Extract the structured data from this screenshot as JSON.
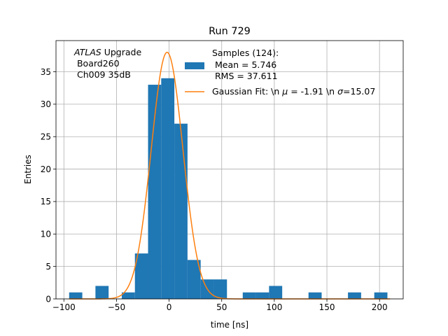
{
  "chart_data": {
    "type": "bar",
    "title": "Run 729",
    "xlabel": "time [ns]",
    "ylabel": "Entries",
    "xlim": [
      -107.5,
      222.5
    ],
    "ylim": [
      0,
      39.8
    ],
    "xticks": [
      -100,
      -50,
      0,
      50,
      100,
      150,
      200
    ],
    "yticks": [
      0,
      5,
      10,
      15,
      20,
      25,
      30,
      35
    ],
    "grid": true,
    "annotation": {
      "atlas": "ATLAS",
      "line1_rest": " Upgrade",
      "line2": " Board260",
      "line3": " Ch009 35dB"
    },
    "histogram": {
      "name": "Samples (124):",
      "mean_label": " Mean = 5.746",
      "rms_label": " RMS = 37.611",
      "color": "#1f77b4",
      "bins": [
        {
          "x0": -95.0,
          "x1": -82.5,
          "count": 1
        },
        {
          "x0": -70.0,
          "x1": -57.5,
          "count": 2
        },
        {
          "x0": -45.0,
          "x1": -32.5,
          "count": 1
        },
        {
          "x0": -32.5,
          "x1": -20.0,
          "count": 7
        },
        {
          "x0": -20.0,
          "x1": -7.5,
          "count": 33
        },
        {
          "x0": -7.5,
          "x1": 5.0,
          "count": 34
        },
        {
          "x0": 5.0,
          "x1": 17.5,
          "count": 27
        },
        {
          "x0": 17.5,
          "x1": 30.0,
          "count": 6
        },
        {
          "x0": 30.0,
          "x1": 42.5,
          "count": 3
        },
        {
          "x0": 42.5,
          "x1": 55.0,
          "count": 3
        },
        {
          "x0": 70.0,
          "x1": 82.5,
          "count": 1
        },
        {
          "x0": 82.5,
          "x1": 95.0,
          "count": 1
        },
        {
          "x0": 95.0,
          "x1": 107.5,
          "count": 2
        },
        {
          "x0": 132.5,
          "x1": 145.0,
          "count": 1
        },
        {
          "x0": 170.0,
          "x1": 182.5,
          "count": 1
        },
        {
          "x0": 195.0,
          "x1": 207.5,
          "count": 1
        }
      ]
    },
    "fit": {
      "name": "Gaussian Fit: \\n $\\mu$ = -1.91 \\n $\\sigma$=15.07",
      "label_prefix": "Gaussian Fit: \\n ",
      "mu_symbol": "μ",
      "label_mid": " = -1.91 \\n ",
      "sigma_symbol": "σ",
      "label_suffix": "=15.07",
      "color": "#ff7f0e",
      "mu": -1.91,
      "sigma": 15.07,
      "amplitude": 38.0,
      "x_range": [
        -95,
        210
      ]
    },
    "legend_position": "upper-right"
  }
}
